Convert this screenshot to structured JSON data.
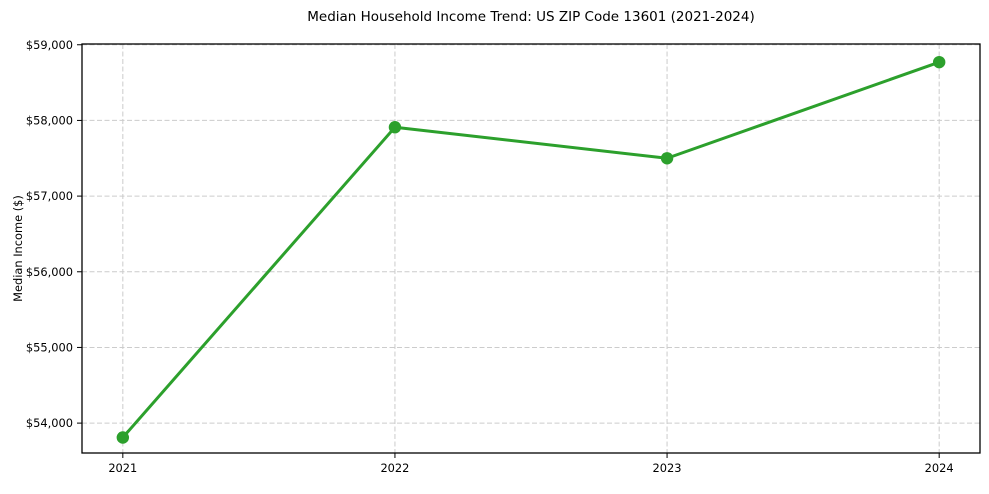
{
  "chart_data": {
    "type": "line",
    "title": "Median Household Income Trend: US ZIP Code 13601 (2021-2024)",
    "xlabel": "",
    "ylabel": "Median Income ($)",
    "x": [
      2021,
      2022,
      2023,
      2024
    ],
    "x_tick_labels": [
      "2021",
      "2022",
      "2023",
      "2024"
    ],
    "values": [
      53810,
      57910,
      57500,
      58770
    ],
    "y_ticks": [
      54000,
      55000,
      56000,
      57000,
      58000,
      59000
    ],
    "y_tick_labels": [
      "$54,000",
      "$55,000",
      "$56,000",
      "$57,000",
      "$58,000",
      "$59,000"
    ],
    "xlim": [
      2020.85,
      2024.15
    ],
    "ylim": [
      53605,
      59010
    ],
    "grid": true,
    "legend_position": "none",
    "line_color": "#2ca02c",
    "marker_color": "#2ca02c",
    "grid_color": "#cccccc",
    "axis_color": "#000000",
    "background_color": "#ffffff"
  }
}
